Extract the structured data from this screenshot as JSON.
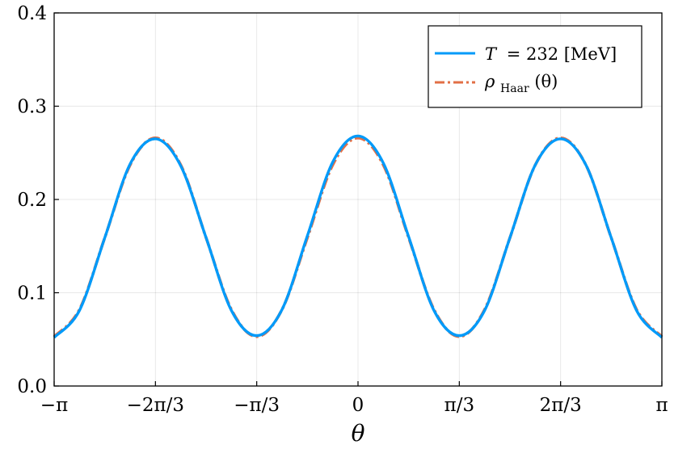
{
  "chart_data": {
    "type": "line",
    "title": "",
    "xlabel": "θ",
    "ylabel": "",
    "xlim": [
      -3.14159265,
      3.14159265
    ],
    "ylim": [
      0.0,
      0.4
    ],
    "grid": true,
    "legend": {
      "placement": "top-right"
    },
    "x_ticks": [
      {
        "value": -3.14159265,
        "label": "−π"
      },
      {
        "value": -2.0943951,
        "label": "−2π/3"
      },
      {
        "value": -1.04719755,
        "label": "−π/3"
      },
      {
        "value": 0,
        "label": "0"
      },
      {
        "value": 1.04719755,
        "label": "π/3"
      },
      {
        "value": 2.0943951,
        "label": "2π/3"
      },
      {
        "value": 3.14159265,
        "label": "π"
      }
    ],
    "y_ticks": [
      {
        "value": 0.0,
        "label": "0.0"
      },
      {
        "value": 0.1,
        "label": "0.1"
      },
      {
        "value": 0.2,
        "label": "0.2"
      },
      {
        "value": 0.3,
        "label": "0.3"
      },
      {
        "value": 0.4,
        "label": "0.4"
      }
    ],
    "series": [
      {
        "name": "T = 232 [MeV]",
        "color": "#009AF9",
        "style": "solid",
        "x": [
          -3.1416,
          -2.8798,
          -2.618,
          -2.3562,
          -2.0944,
          -1.8326,
          -1.5708,
          -1.309,
          -1.0472,
          -0.7854,
          -0.5236,
          -0.2618,
          0,
          0.2618,
          0.5236,
          0.7854,
          1.0472,
          1.309,
          1.5708,
          1.8326,
          2.0944,
          2.3562,
          2.618,
          2.8798,
          3.1416
        ],
        "y": [
          0.052,
          0.081,
          0.159,
          0.238,
          0.265,
          0.236,
          0.159,
          0.081,
          0.054,
          0.082,
          0.161,
          0.24,
          0.268,
          0.239,
          0.16,
          0.081,
          0.054,
          0.081,
          0.159,
          0.237,
          0.265,
          0.237,
          0.159,
          0.081,
          0.052
        ]
      },
      {
        "name": "ρ_Haar(θ)",
        "color": "#E26F46",
        "style": "dashdot",
        "x": [
          -3.1416,
          -2.8798,
          -2.618,
          -2.3562,
          -2.0944,
          -1.8326,
          -1.5708,
          -1.309,
          -1.0472,
          -0.7854,
          -0.5236,
          -0.2618,
          0,
          0.2618,
          0.5236,
          0.7854,
          1.0472,
          1.309,
          1.5708,
          1.8326,
          2.0944,
          2.3562,
          2.618,
          2.8798,
          3.1416
        ],
        "y": [
          0.053,
          0.082,
          0.159,
          0.237,
          0.266,
          0.237,
          0.159,
          0.082,
          0.053,
          0.082,
          0.159,
          0.237,
          0.266,
          0.237,
          0.159,
          0.082,
          0.053,
          0.082,
          0.159,
          0.237,
          0.266,
          0.237,
          0.159,
          0.082,
          0.053
        ]
      }
    ]
  },
  "legend_text": {
    "blue": {
      "var": "T",
      "value": "= 232 [MeV]"
    },
    "red": {
      "var": "ρ",
      "sub": "Haar",
      "arg": "(θ)"
    }
  }
}
